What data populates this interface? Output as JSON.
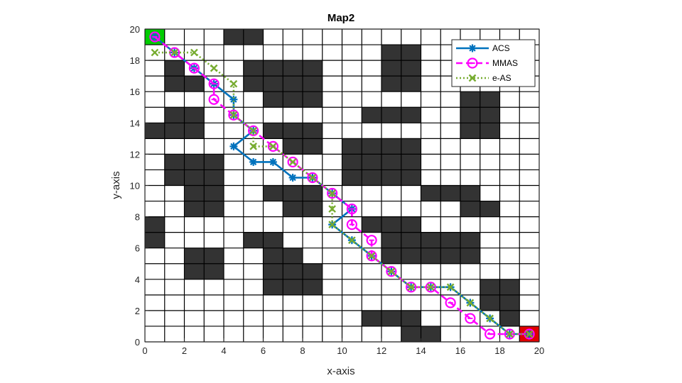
{
  "chart_data": {
    "type": "scatter",
    "title": "Map2",
    "xlabel": "x-axis",
    "ylabel": "y-axis",
    "xlim": [
      0,
      20
    ],
    "ylim": [
      0,
      20
    ],
    "xticks": [
      0,
      2,
      4,
      6,
      8,
      10,
      12,
      14,
      16,
      18,
      20
    ],
    "yticks": [
      0,
      2,
      4,
      6,
      8,
      10,
      12,
      14,
      16,
      18,
      20
    ],
    "grid": true,
    "legend_position": "top-right",
    "start_cell": [
      0,
      19
    ],
    "goal_cell": [
      19,
      0
    ],
    "start_color": "#00cc00",
    "goal_color": "#e00000",
    "obstacle_color": "#333333",
    "obstacles": [
      [
        4,
        19
      ],
      [
        5,
        19
      ],
      [
        12,
        18
      ],
      [
        13,
        18
      ],
      [
        1,
        17
      ],
      [
        5,
        17
      ],
      [
        6,
        17
      ],
      [
        7,
        17
      ],
      [
        8,
        17
      ],
      [
        12,
        17
      ],
      [
        13,
        17
      ],
      [
        1,
        16
      ],
      [
        2,
        16
      ],
      [
        5,
        16
      ],
      [
        6,
        16
      ],
      [
        7,
        16
      ],
      [
        8,
        16
      ],
      [
        12,
        16
      ],
      [
        13,
        16
      ],
      [
        6,
        15
      ],
      [
        7,
        15
      ],
      [
        8,
        15
      ],
      [
        16,
        15
      ],
      [
        17,
        15
      ],
      [
        1,
        14
      ],
      [
        2,
        14
      ],
      [
        11,
        14
      ],
      [
        12,
        14
      ],
      [
        13,
        14
      ],
      [
        16,
        14
      ],
      [
        17,
        14
      ],
      [
        0,
        13
      ],
      [
        1,
        13
      ],
      [
        2,
        13
      ],
      [
        6,
        13
      ],
      [
        7,
        13
      ],
      [
        8,
        13
      ],
      [
        16,
        13
      ],
      [
        17,
        13
      ],
      [
        7,
        12
      ],
      [
        8,
        12
      ],
      [
        10,
        12
      ],
      [
        11,
        12
      ],
      [
        12,
        12
      ],
      [
        13,
        12
      ],
      [
        1,
        11
      ],
      [
        2,
        11
      ],
      [
        3,
        11
      ],
      [
        10,
        11
      ],
      [
        11,
        11
      ],
      [
        12,
        11
      ],
      [
        13,
        11
      ],
      [
        1,
        10
      ],
      [
        2,
        10
      ],
      [
        3,
        10
      ],
      [
        10,
        10
      ],
      [
        11,
        10
      ],
      [
        12,
        10
      ],
      [
        13,
        10
      ],
      [
        2,
        9
      ],
      [
        3,
        9
      ],
      [
        6,
        9
      ],
      [
        7,
        9
      ],
      [
        8,
        9
      ],
      [
        14,
        9
      ],
      [
        15,
        9
      ],
      [
        16,
        9
      ],
      [
        2,
        8
      ],
      [
        3,
        8
      ],
      [
        7,
        8
      ],
      [
        8,
        8
      ],
      [
        16,
        8
      ],
      [
        17,
        8
      ],
      [
        0,
        7
      ],
      [
        11,
        7
      ],
      [
        12,
        7
      ],
      [
        13,
        7
      ],
      [
        0,
        6
      ],
      [
        5,
        6
      ],
      [
        6,
        6
      ],
      [
        12,
        6
      ],
      [
        13,
        6
      ],
      [
        14,
        6
      ],
      [
        15,
        6
      ],
      [
        16,
        6
      ],
      [
        2,
        5
      ],
      [
        3,
        5
      ],
      [
        6,
        5
      ],
      [
        7,
        5
      ],
      [
        12,
        5
      ],
      [
        13,
        5
      ],
      [
        14,
        5
      ],
      [
        15,
        5
      ],
      [
        16,
        5
      ],
      [
        2,
        4
      ],
      [
        3,
        4
      ],
      [
        6,
        4
      ],
      [
        7,
        4
      ],
      [
        8,
        4
      ],
      [
        6,
        3
      ],
      [
        7,
        3
      ],
      [
        8,
        3
      ],
      [
        17,
        3
      ],
      [
        18,
        3
      ],
      [
        17,
        2
      ],
      [
        18,
        2
      ],
      [
        11,
        1
      ],
      [
        12,
        1
      ],
      [
        13,
        1
      ],
      [
        18,
        1
      ],
      [
        13,
        0
      ],
      [
        14,
        0
      ]
    ],
    "series": [
      {
        "name": "ACS",
        "color": "#0072bd",
        "linestyle": "solid",
        "marker": "asterisk",
        "x": [
          0.5,
          1.5,
          2.5,
          3.5,
          4.5,
          4.5,
          5.5,
          4.5,
          5.5,
          6.5,
          7.5,
          8.5,
          9.5,
          10.5,
          9.5,
          10.5,
          11.5,
          12.5,
          13.5,
          14.5,
          15.5,
          16.5,
          17.5,
          18.5,
          19.5
        ],
        "y": [
          19.5,
          18.5,
          17.5,
          16.5,
          15.5,
          14.5,
          13.5,
          12.5,
          11.5,
          11.5,
          10.5,
          10.5,
          9.5,
          8.5,
          7.5,
          6.5,
          5.5,
          4.5,
          3.5,
          3.5,
          3.5,
          2.5,
          1.5,
          0.5,
          0.5
        ]
      },
      {
        "name": "MMAS",
        "color": "#ff00ff",
        "linestyle": "dashed",
        "marker": "circle-theta",
        "x": [
          0.5,
          1.5,
          2.5,
          3.5,
          3.5,
          4.5,
          5.5,
          6.5,
          7.5,
          8.5,
          9.5,
          10.5,
          10.5,
          11.5,
          11.5,
          12.5,
          13.5,
          14.5,
          15.5,
          16.5,
          17.5,
          18.5,
          19.5
        ],
        "y": [
          19.5,
          18.5,
          17.5,
          16.5,
          15.5,
          14.5,
          13.5,
          12.5,
          11.5,
          10.5,
          9.5,
          8.5,
          7.5,
          6.5,
          5.5,
          4.5,
          3.5,
          3.5,
          2.5,
          1.5,
          0.5,
          0.5,
          0.5
        ]
      },
      {
        "name": "e-AS",
        "color": "#77ac30",
        "linestyle": "dotted",
        "marker": "x",
        "x": [
          0.5,
          1.5,
          2.5,
          3.5,
          4.5,
          4.5,
          5.5,
          5.5,
          6.5,
          7.5,
          8.5,
          9.5,
          9.5,
          9.5,
          10.5,
          11.5,
          12.5,
          13.5,
          14.5,
          15.5,
          16.5,
          17.5,
          18.5,
          19.5
        ],
        "y": [
          18.5,
          18.5,
          18.5,
          17.5,
          16.5,
          14.5,
          13.5,
          12.5,
          12.5,
          11.5,
          10.5,
          9.5,
          8.5,
          7.5,
          6.5,
          5.5,
          4.5,
          3.5,
          3.5,
          3.5,
          2.5,
          1.5,
          0.5,
          0.5
        ]
      }
    ]
  }
}
